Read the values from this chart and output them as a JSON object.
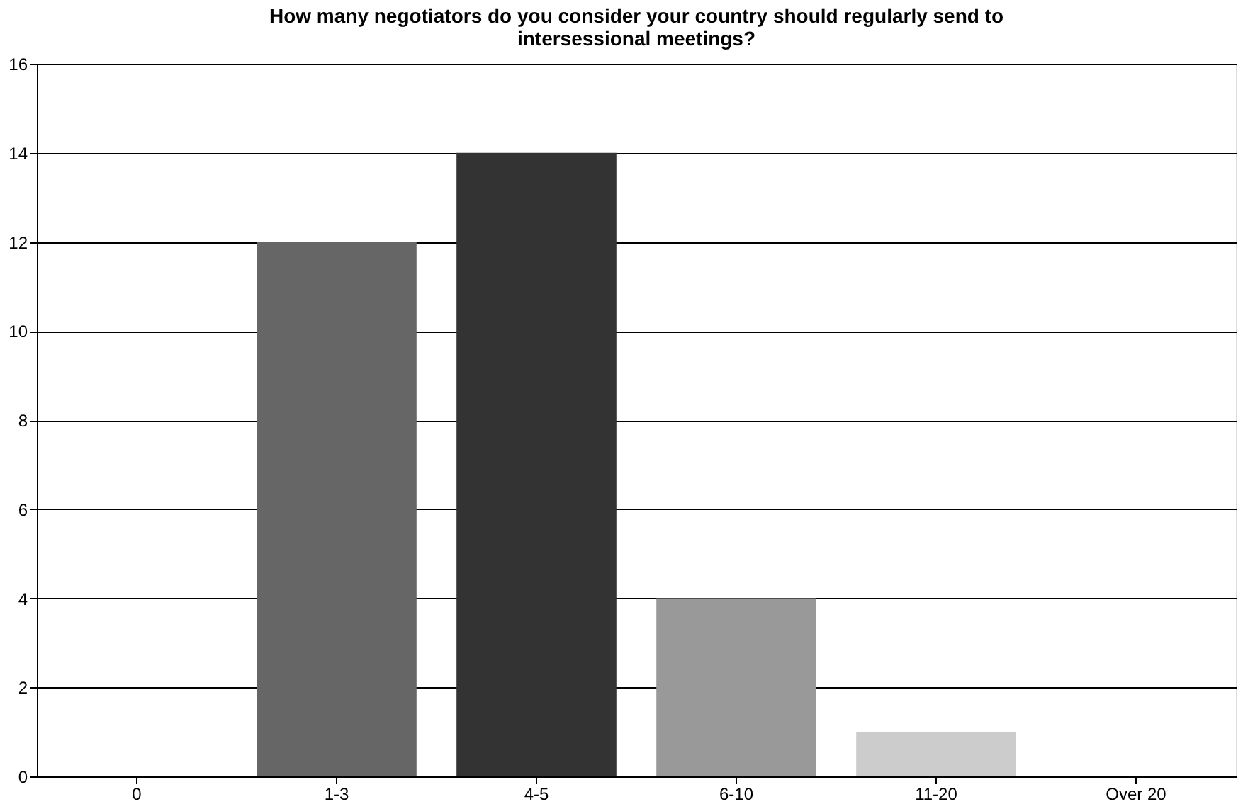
{
  "chart_data": {
    "type": "bar",
    "title": "How many negotiators do you consider your country should regularly send to\nintersessional meetings?",
    "categories": [
      "0",
      "1-3",
      "4-5",
      "6-10",
      "11-20",
      "Over 20"
    ],
    "values": [
      0,
      12,
      14,
      4,
      1,
      0
    ],
    "colors": [
      "#000000",
      "#666666",
      "#333333",
      "#999999",
      "#cccccc",
      "#e6e6e6"
    ],
    "ylim": [
      0,
      16
    ],
    "yticks": [
      0,
      2,
      4,
      6,
      8,
      10,
      12,
      14,
      16
    ],
    "grid": "y",
    "legend": false
  }
}
